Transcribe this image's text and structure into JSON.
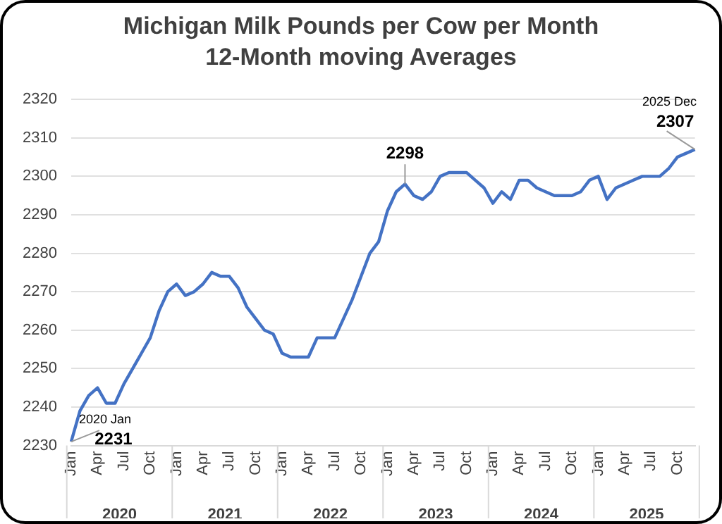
{
  "chart_data": {
    "type": "line",
    "title": "Michigan Milk Pounds per Cow per Month",
    "subtitle": "12-Month moving Averages",
    "categories": [
      "Jan",
      null,
      null,
      "Apr",
      null,
      null,
      "Jul",
      null,
      null,
      "Oct",
      null,
      null,
      "Jan",
      null,
      null,
      "Apr",
      null,
      null,
      "Jul",
      null,
      null,
      "Oct",
      null,
      null,
      "Jan",
      null,
      null,
      "Apr",
      null,
      null,
      "Jul",
      null,
      null,
      "Oct",
      null,
      null,
      "Jan",
      null,
      null,
      "Apr",
      null,
      null,
      "Jul",
      null,
      null,
      "Oct",
      null,
      null,
      "Jan",
      null,
      null,
      "Apr",
      null,
      null,
      "Jul",
      null,
      null,
      "Oct",
      null,
      null,
      "Jan",
      null,
      null,
      "Apr",
      null,
      null,
      "Jul",
      null,
      null,
      "Oct",
      null,
      null
    ],
    "series": [
      {
        "color": "#4472c4",
        "value_labels": [
          "2231",
          null,
          null,
          null,
          null,
          null,
          null,
          null,
          null,
          null,
          null,
          null,
          null,
          null,
          null,
          null,
          null,
          null,
          null,
          null,
          null,
          null,
          null,
          null,
          null,
          null,
          null,
          null,
          null,
          null,
          null,
          null,
          null,
          null,
          null,
          null,
          null,
          null,
          "2298",
          null,
          null,
          null,
          null,
          null,
          null,
          null,
          null,
          null,
          null,
          null,
          null,
          null,
          null,
          null,
          null,
          null,
          null,
          null,
          null,
          null,
          null,
          null,
          null,
          null,
          null,
          null,
          null,
          null,
          null,
          null,
          null,
          "2307"
        ],
        "values": [
          2231,
          2239,
          2243,
          2245,
          2241,
          2241,
          2246,
          2250,
          2254,
          2258,
          2265,
          2270,
          2272,
          2269,
          2270,
          2272,
          2275,
          2274,
          2274,
          2271,
          2266,
          2263,
          2260,
          2259,
          2254,
          2253,
          2253,
          2253,
          2258,
          2258,
          2258,
          2263,
          2268,
          2274,
          2280,
          2283,
          2291,
          2296,
          2298,
          2295,
          2294,
          2296,
          2300,
          2301,
          2301,
          2301,
          2299,
          2297,
          2293,
          2296,
          2294,
          2299,
          2299,
          2297,
          2296,
          2295,
          2295,
          2295,
          2296,
          2299,
          2300,
          2294,
          2297,
          2298,
          2299,
          2300,
          2300,
          2300,
          2302,
          2305,
          2306,
          2307
        ]
      }
    ],
    "ylim": [
      2230,
      2320
    ],
    "yticks": [
      2230,
      2240,
      2250,
      2260,
      2270,
      2280,
      2290,
      2300,
      2310,
      2320
    ],
    "grid": "y",
    "legend": false,
    "marker": "none",
    "line_style": "solid",
    "annotations": [
      "2020 Jan",
      "2025 Dec",
      "2020",
      "2021",
      "2022",
      "2023",
      "2024",
      "2025"
    ]
  }
}
